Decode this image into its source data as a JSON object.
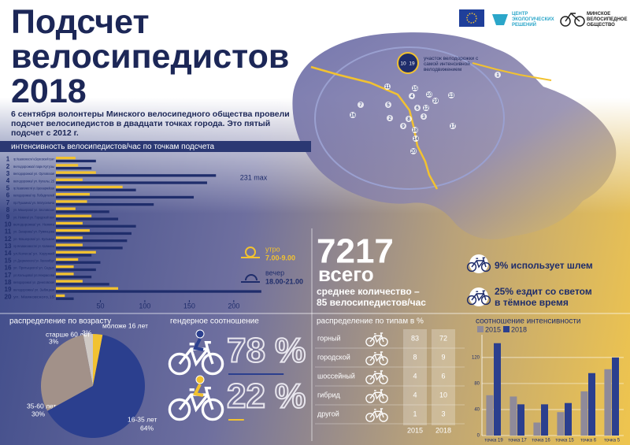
{
  "header": {
    "title": "Подсчет велосипедистов 2018",
    "description": "6 сентября волонтеры Минского велосипедного общества провели подсчет велосипедистов в двадцати точках города. Это пятый подсчет  с 2012 г."
  },
  "logos": {
    "center": "ЦЕНТР ЭКОЛОГИЧЕСКИХ РЕШЕНИЙ",
    "society": "МИНСКОЕ ВЕЛОСИПЕДНОЕ ОБЩЕСТВО"
  },
  "map": {
    "legend": "участок велодорожки с самой интенсивной велодвижением",
    "legend_points": [
      "10",
      "19"
    ],
    "points": [
      "1",
      "2",
      "3",
      "4",
      "5",
      "6",
      "7",
      "8",
      "9",
      "10",
      "11",
      "12",
      "13",
      "14",
      "15",
      "16",
      "17",
      "18",
      "19",
      "20"
    ]
  },
  "totals": {
    "total": "7217",
    "total_label": "всего",
    "average_lines": [
      "среднее количество –",
      "85 велосипедистов/час"
    ],
    "helmet": "9% использует шлем",
    "light_lines": [
      "25% ездит со светом",
      "в тёмное время"
    ]
  },
  "types_table": {
    "title": "распределение по типам в %",
    "columns": [
      "2015",
      "2018"
    ],
    "rows": [
      [
        "горный",
        83,
        72
      ],
      [
        "городской",
        8,
        9
      ],
      [
        "шоссейный",
        4,
        6
      ],
      [
        "гибрид",
        4,
        10
      ],
      [
        "другой",
        1,
        3
      ]
    ]
  },
  "chart_data": [
    {
      "type": "hbar",
      "title": "интенсивность велосипедистов/час по точкам подсчета",
      "categories": [
        "1",
        "2",
        "3",
        "4",
        "5",
        "6",
        "7",
        "8",
        "9",
        "10",
        "11",
        "12",
        "13",
        "14",
        "15",
        "16",
        "17",
        "18",
        "19",
        "20"
      ],
      "locations": [
        "пр.Независимости/ ж.Борисовский тракт",
        "велодорожка/ парк Кутузы",
        "велодорожка/ ул. Орловская",
        "велодорожка/ ул. Купалы, 25",
        "пр.Независимости/ ул. Красноармейская",
        "велодорожка/ пр. Победителей",
        "пр.Пушкина/ ул. Матусевича",
        "ул. Машерова/ ул. Заславская",
        "ул. Немига/ ул. Городской вал",
        "велодорожка/ ул. Немига",
        "ул. Захарова/ ул. Румянцева",
        "ул. Машерова/ ул. Кульман",
        "пр.Независимости/ ул. Калинина",
        "ул.Колеса/ ул. Хоружей",
        "ул. Дзержинского/ ул. Люксембург",
        "ул. Притыцкого/ ул. Седых",
        "ул.Кольцова/ ул.Некрасова",
        "велодорожка/ ул. Денисовская",
        "велодорожка/ ул. Зыбицкая",
        "ул. Маяковского,15"
      ],
      "series": [
        {
          "name": "утро",
          "time": "7.00-9.00",
          "color": "#f2c230",
          "values": [
            22,
            25,
            45,
            30,
            75,
            38,
            35,
            22,
            40,
            30,
            38,
            30,
            30,
            45,
            25,
            20,
            20,
            30,
            70,
            10
          ]
        },
        {
          "name": "вечер",
          "time": "18.00-21.00",
          "color": "#1f2d6b",
          "values": [
            45,
            40,
            180,
            170,
            90,
            155,
            110,
            60,
            70,
            90,
            85,
            80,
            75,
            40,
            50,
            45,
            40,
            60,
            231,
            20
          ]
        }
      ],
      "xlim": [
        0,
        240
      ],
      "xticks": [
        50,
        100,
        150,
        200
      ],
      "annotation": "231 max"
    },
    {
      "type": "pie",
      "title": "распределение по возрасту",
      "categories": [
        "моложе 16 лет",
        "старше 60 лет",
        "35-60 лет",
        "16-35 лет"
      ],
      "values": [
        3,
        3,
        30,
        64
      ],
      "value_labels": [
        "3%",
        "3%",
        "30%",
        "64%"
      ],
      "colors": [
        "#f2c230",
        "#cfc9c4",
        "#a29189",
        "#2b3f8e"
      ]
    },
    {
      "type": "percent",
      "title": "гендерное соотношение",
      "values": [
        78,
        22
      ],
      "value_labels": [
        "78 %",
        "22 %"
      ],
      "colors": [
        "#2b3f8e",
        "#f2c230"
      ]
    },
    {
      "type": "bar",
      "title": "соотношение интенсивности",
      "categories": [
        "точка 19",
        "точка 17",
        "точка 16",
        "точка 15",
        "точка 6",
        "точка 5"
      ],
      "series": [
        {
          "name": "2015",
          "color": "#8f8a99",
          "values": [
            62,
            60,
            20,
            36,
            68,
            102
          ]
        },
        {
          "name": "2018",
          "color": "#2b3f8e",
          "values": [
            142,
            48,
            48,
            50,
            96,
            120
          ]
        }
      ],
      "ylim": [
        0,
        155
      ],
      "yticks": [
        0,
        40,
        80,
        120
      ],
      "grid": true
    }
  ]
}
